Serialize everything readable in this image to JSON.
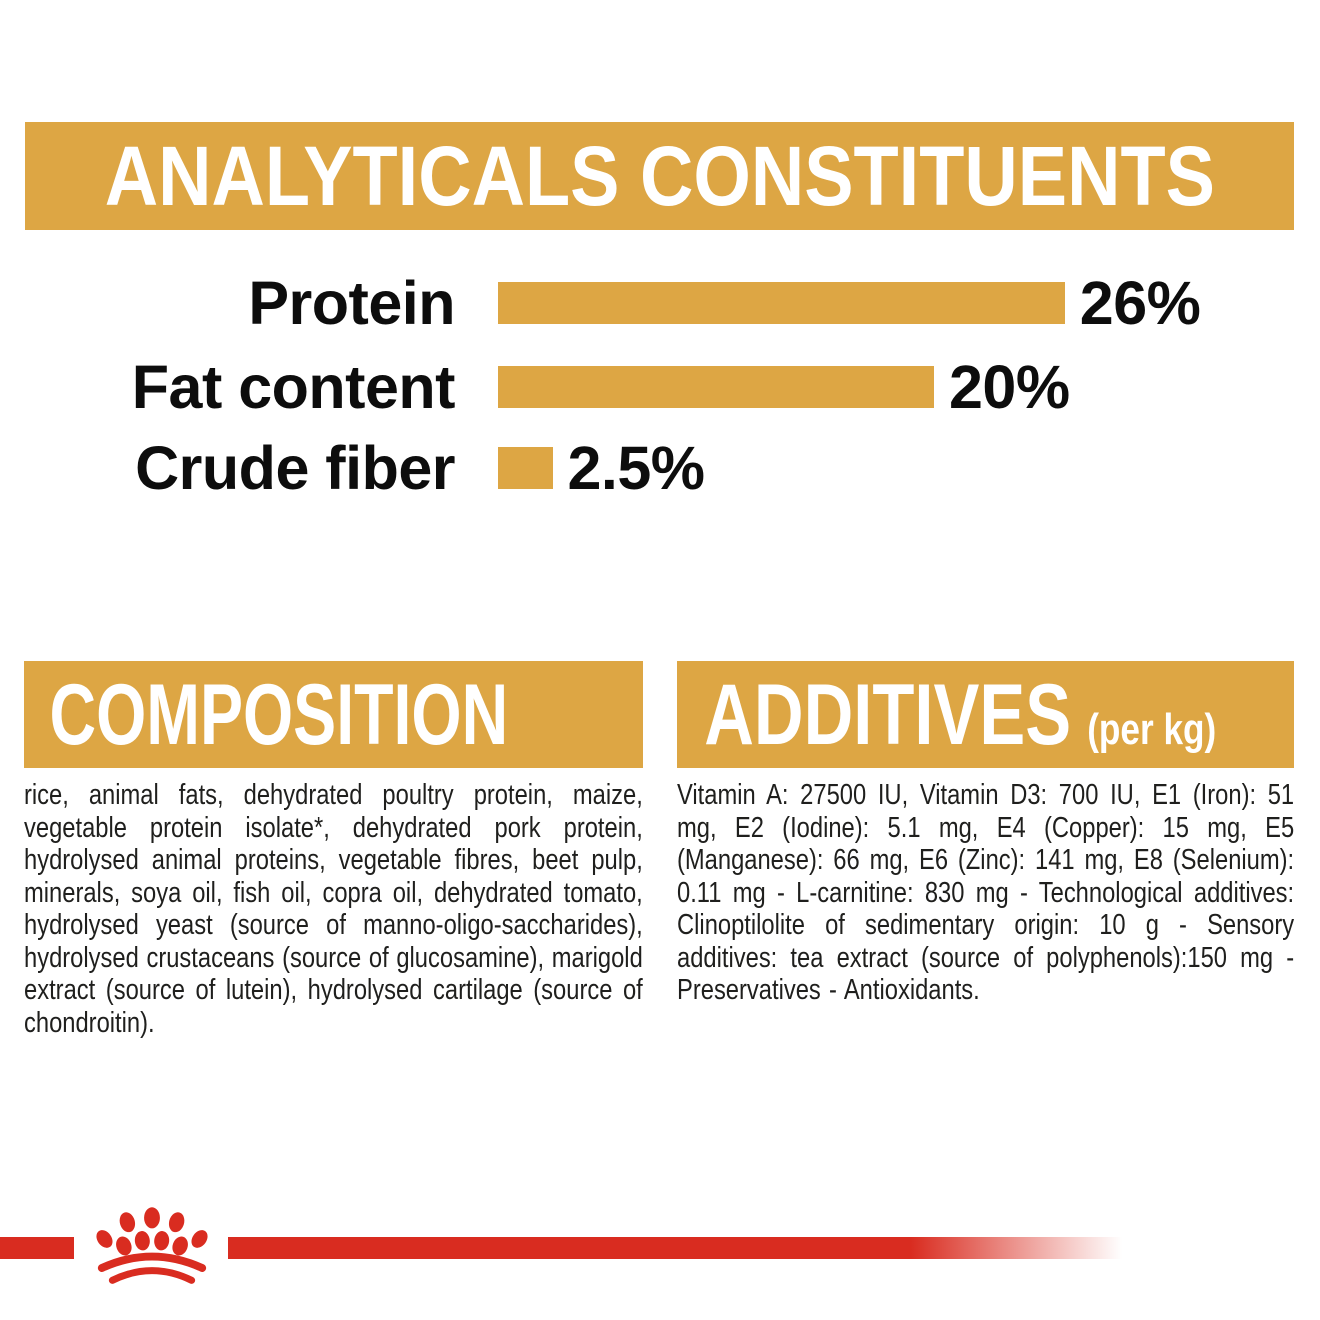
{
  "colors": {
    "gold": "#DDA644",
    "red": "#D92C20",
    "heading_text": "#FFFFFF",
    "label_text": "#0D0D0D",
    "body_text": "#1F1F1D"
  },
  "analyticals": {
    "title": "ANALYTICALS CONSTITUENTS",
    "rows": [
      {
        "label": "Protein",
        "percent": 26,
        "value_label": "26%"
      },
      {
        "label": "Fat content",
        "percent": 20,
        "value_label": "20%"
      },
      {
        "label": "Crude fiber",
        "percent": 2.5,
        "value_label": "2.5%"
      }
    ]
  },
  "composition": {
    "title": "COMPOSITION",
    "body": "rice, animal fats, dehydrated poultry protein, maize, vegetable protein isolate*, dehydrated pork protein, hydrolysed animal proteins, vegetable fibres, beet pulp, minerals, soya oil, fish oil, copra oil, dehydrated tomato, hydrolysed yeast (source of manno-oligo-saccharides), hydrolysed crustaceans (source of glucosamine), marigold extract (source of lutein), hydrolysed cartilage (source of chondroitin)."
  },
  "additives": {
    "title": "ADDITIVES",
    "unit": "(per kg)",
    "body": "Vitamin A: 27500 IU, Vitamin D3: 700 IU, E1 (Iron): 51 mg, E2 (Iodine): 5.1 mg, E4 (Copper): 15 mg, E5 (Manganese): 66 mg, E6 (Zinc): 141 mg, E8 (Selenium): 0.11 mg - L-carnitine: 830 mg - Technological additives: Clinoptilolite of sedimentary origin: 10 g - Sensory additives: tea extract (source of polyphenols):150 mg - Preservatives - Antioxidants.",
    "footer_logo": "royal-canin-crown"
  },
  "chart_data": {
    "type": "bar",
    "orientation": "horizontal",
    "title": "ANALYTICALS CONSTITUENTS",
    "categories": [
      "Protein",
      "Fat content",
      "Crude fiber"
    ],
    "values": [
      26,
      20,
      2.5
    ],
    "value_labels": [
      "26%",
      "20%",
      "2.5%"
    ],
    "unit": "%",
    "xlim": [
      0,
      29
    ],
    "bar_color": "#DDA644",
    "grid": false,
    "legend": false,
    "axes_hidden": true,
    "value_label_position": "end-of-bar"
  }
}
